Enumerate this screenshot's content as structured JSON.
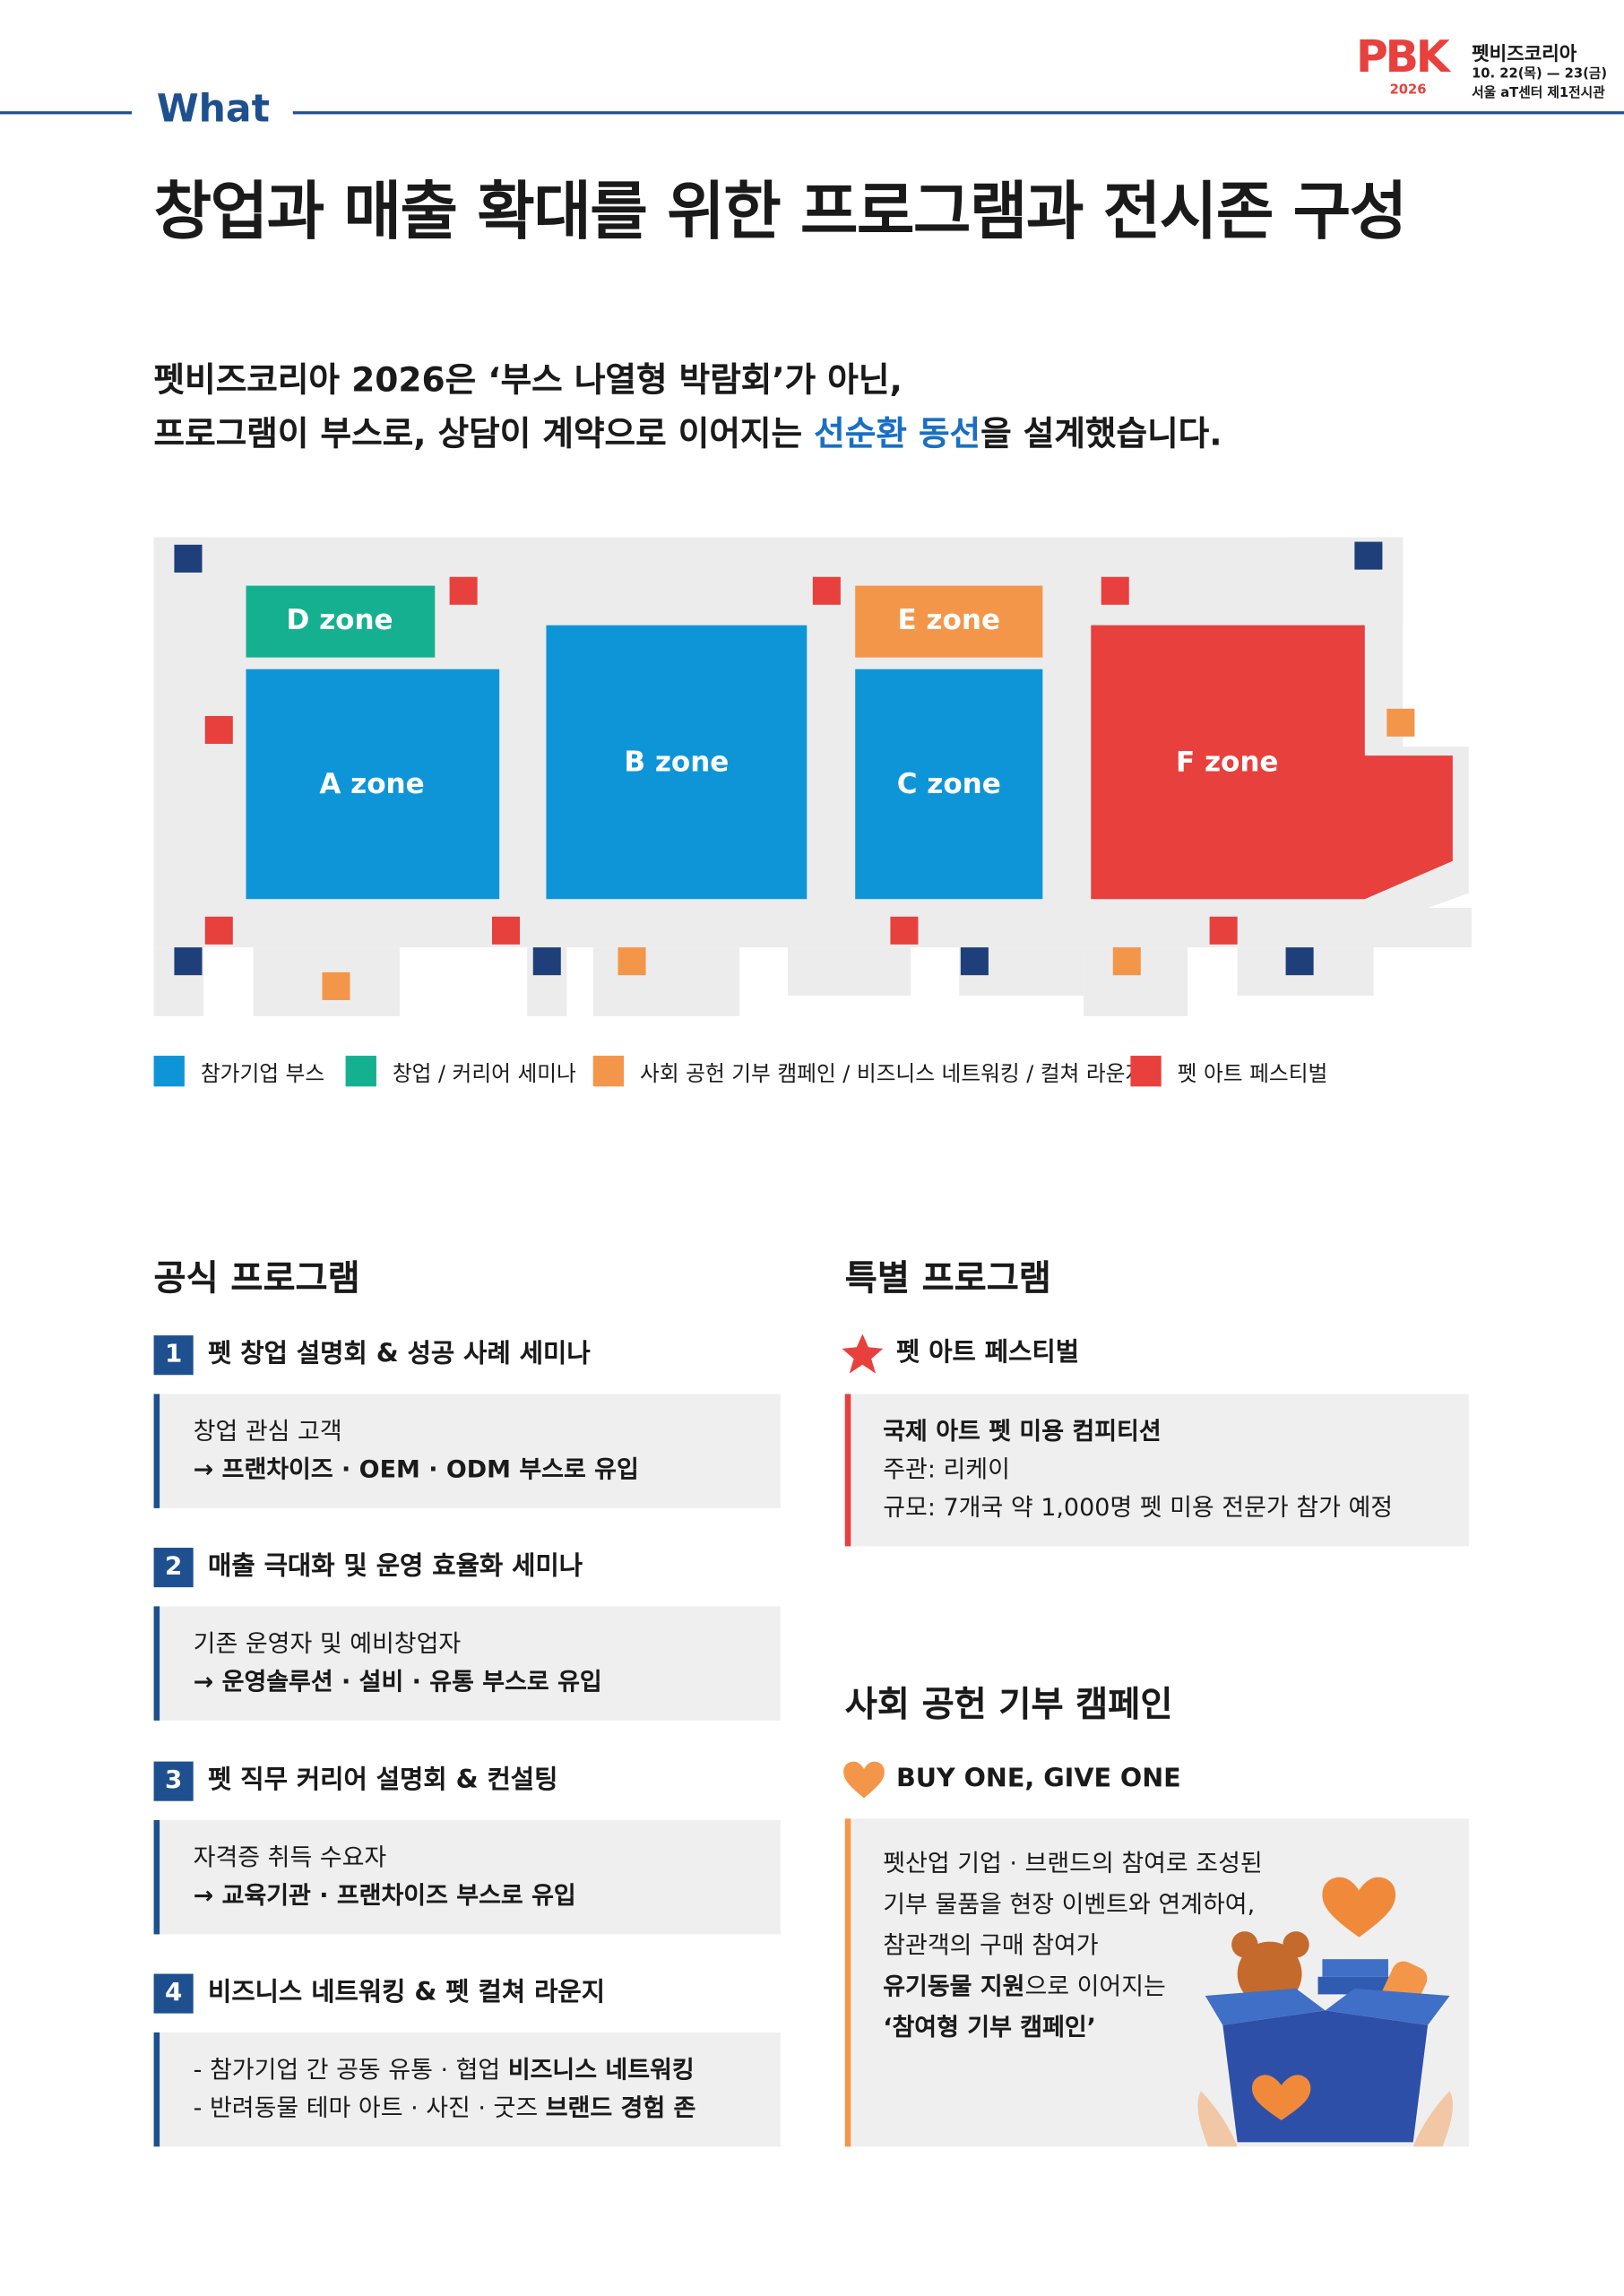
{
  "header": {
    "logo": {
      "mark": "PBK",
      "name": "펫비즈코리아",
      "dates": "10. 22(목) — 23(금)",
      "venue": "서울 aT센터 제1전시관",
      "year": "2026"
    },
    "section": "What",
    "title": "창업과 매출 확대를 위한 프로그램과 전시존 구성"
  },
  "intro": {
    "lines": [
      [
        {
          "text": "펫비즈코리아 2026은 ‘부스 나열형 박람회’가 아닌,"
        }
      ],
      [
        {
          "text": "프로그램이 부스로, 상담이 계약으로 이어지는 "
        },
        {
          "text": "선순환 동선",
          "highlight": true
        },
        {
          "text": "을 설계했습니다."
        }
      ]
    ]
  },
  "map": {
    "zones": [
      {
        "label": "D zone",
        "color": "#15b08f"
      },
      {
        "label": "A zone",
        "color": "#0e95d8"
      },
      {
        "label": "B zone",
        "color": "#0e95d8"
      },
      {
        "label": "E zone",
        "color": "#f4964a"
      },
      {
        "label": "C zone",
        "color": "#0e95d8"
      },
      {
        "label": "F zone",
        "color": "#e8403d"
      }
    ],
    "legend": [
      {
        "label": "참가기업 부스",
        "color": "#0e95d8"
      },
      {
        "label": "창업 / 커리어 세미나",
        "color": "#15b08f"
      },
      {
        "label": "사회 공헌 기부 캠페인 / 비즈니스 네트워킹 / 컬쳐 라운지",
        "color": "#f4964a"
      },
      {
        "label": "펫 아트 페스티벌",
        "color": "#e8403d"
      }
    ]
  },
  "official": {
    "title": "공식 프로그램",
    "items": [
      {
        "number": 1,
        "title": "펫 창업 설명회 & 성공 사례 세미나",
        "lines": [
          [
            {
              "text": "창업 관심 고객"
            }
          ],
          [
            {
              "text": "→ 프랜차이즈 · OEM · ODM 부스로 유입",
              "bold": true
            }
          ]
        ]
      },
      {
        "number": 2,
        "title": "매출 극대화 및 운영 효율화 세미나",
        "lines": [
          [
            {
              "text": "기존 운영자 및 예비창업자"
            }
          ],
          [
            {
              "text": "→ 운영솔루션 · 설비 · 유통 부스로 유입",
              "bold": true
            }
          ]
        ]
      },
      {
        "number": 3,
        "title": "펫 직무 커리어 설명회 & 컨설팅",
        "lines": [
          [
            {
              "text": "자격증 취득 수요자"
            }
          ],
          [
            {
              "text": "→ 교육기관 · 프랜차이즈 부스로 유입",
              "bold": true
            }
          ]
        ]
      },
      {
        "number": 4,
        "title": "비즈니스 네트워킹 & 펫 컬쳐 라운지",
        "lines": [
          [
            {
              "text": "- 참가기업 간 공동 유통 · 협업 "
            },
            {
              "text": "비즈니스 네트워킹",
              "bold": true
            }
          ],
          [
            {
              "text": "- 반려동물 테마 아트 · 사진 · 굿즈 "
            },
            {
              "text": "브랜드 경험 존",
              "bold": true
            }
          ]
        ]
      }
    ]
  },
  "special": {
    "title": "특별 프로그램",
    "item": {
      "title": "펫 아트 페스티벌",
      "lines": [
        [
          {
            "text": "국제 아트 펫 미용 컴피티션",
            "bold": true
          }
        ],
        [
          {
            "text": "주관: 리케이"
          }
        ],
        [
          {
            "text": "규모: 7개국 약 1,000명 펫 미용 전문가 참가 예정"
          }
        ]
      ]
    }
  },
  "campaign": {
    "title": "사회 공헌 기부 캠페인",
    "subtitle": "BUY ONE, GIVE ONE",
    "lines": [
      [
        {
          "text": "펫산업 기업 · 브랜드의 참여로 조성된"
        }
      ],
      [
        {
          "text": "기부 물품을 현장 이벤트와 연계하여,"
        }
      ],
      [
        {
          "text": "참관객의 구매 참여가"
        }
      ],
      [
        {
          "text": "유기동물 지원",
          "bold": true
        },
        {
          "text": "으로 이어지는"
        }
      ],
      [
        {
          "text": "‘참여형 기부 캠페인’",
          "bold": true
        }
      ]
    ]
  }
}
